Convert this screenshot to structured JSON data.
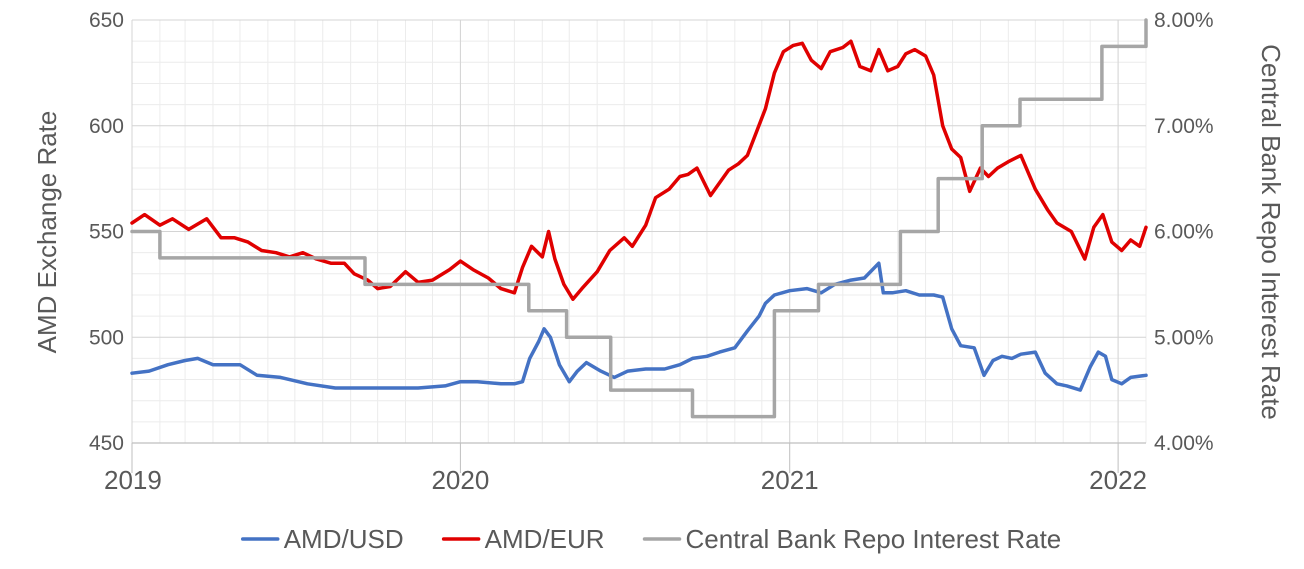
{
  "chart_data": {
    "type": "line",
    "title": "",
    "y_left_label": "AMD Exchange Rate",
    "y_right_label": "Central Bank Repo Interest Rate",
    "x_range": [
      "2019-01-01",
      "2022-02-01"
    ],
    "y_left_range": [
      450,
      650
    ],
    "y_left_ticks": [
      "450",
      "500",
      "550",
      "600",
      "650"
    ],
    "y_right_range": [
      4.0,
      8.0
    ],
    "y_right_ticks": [
      "4.00%",
      "5.00%",
      "6.00%",
      "7.00%",
      "8.00%"
    ],
    "x_ticks": [
      {
        "date": "2019-01-01",
        "label": "2019"
      },
      {
        "date": "2020-01-01",
        "label": "2020"
      },
      {
        "date": "2021-01-01",
        "label": "2021"
      },
      {
        "date": "2022-01-01",
        "label": "2022"
      }
    ],
    "grid": true,
    "legend_position": "bottom",
    "series": [
      {
        "name": "AMD/USD",
        "axis": "left",
        "color": "#4472C4",
        "style": "line",
        "points": [
          [
            "2019-01-01",
            483
          ],
          [
            "2019-01-20",
            484
          ],
          [
            "2019-02-10",
            487
          ],
          [
            "2019-03-01",
            489
          ],
          [
            "2019-03-15",
            490
          ],
          [
            "2019-04-01",
            487
          ],
          [
            "2019-05-01",
            487
          ],
          [
            "2019-05-20",
            482
          ],
          [
            "2019-06-15",
            481
          ],
          [
            "2019-07-15",
            478
          ],
          [
            "2019-08-15",
            476
          ],
          [
            "2019-09-15",
            476
          ],
          [
            "2019-10-15",
            476
          ],
          [
            "2019-11-15",
            476
          ],
          [
            "2019-12-15",
            477
          ],
          [
            "2020-01-01",
            479
          ],
          [
            "2020-01-20",
            479
          ],
          [
            "2020-02-15",
            478
          ],
          [
            "2020-03-01",
            478
          ],
          [
            "2020-03-10",
            479
          ],
          [
            "2020-03-18",
            490
          ],
          [
            "2020-03-28",
            498
          ],
          [
            "2020-04-03",
            504
          ],
          [
            "2020-04-10",
            500
          ],
          [
            "2020-04-20",
            487
          ],
          [
            "2020-05-01",
            479
          ],
          [
            "2020-05-10",
            484
          ],
          [
            "2020-05-20",
            488
          ],
          [
            "2020-06-05",
            484
          ],
          [
            "2020-06-20",
            481
          ],
          [
            "2020-07-05",
            484
          ],
          [
            "2020-07-25",
            485
          ],
          [
            "2020-08-15",
            485
          ],
          [
            "2020-09-01",
            487
          ],
          [
            "2020-09-15",
            490
          ],
          [
            "2020-10-01",
            491
          ],
          [
            "2020-10-15",
            493
          ],
          [
            "2020-11-01",
            495
          ],
          [
            "2020-11-15",
            503
          ],
          [
            "2020-11-28",
            510
          ],
          [
            "2020-12-05",
            516
          ],
          [
            "2020-12-15",
            520
          ],
          [
            "2021-01-01",
            522
          ],
          [
            "2021-01-20",
            523
          ],
          [
            "2021-02-05",
            521
          ],
          [
            "2021-02-20",
            525
          ],
          [
            "2021-03-10",
            527
          ],
          [
            "2021-03-25",
            528
          ],
          [
            "2021-04-10",
            535
          ],
          [
            "2021-04-15",
            521
          ],
          [
            "2021-04-25",
            521
          ],
          [
            "2021-05-10",
            522
          ],
          [
            "2021-05-25",
            520
          ],
          [
            "2021-06-10",
            520
          ],
          [
            "2021-06-20",
            519
          ],
          [
            "2021-06-30",
            504
          ],
          [
            "2021-07-10",
            496
          ],
          [
            "2021-07-25",
            495
          ],
          [
            "2021-08-05",
            482
          ],
          [
            "2021-08-15",
            489
          ],
          [
            "2021-08-25",
            491
          ],
          [
            "2021-09-05",
            490
          ],
          [
            "2021-09-15",
            492
          ],
          [
            "2021-10-01",
            493
          ],
          [
            "2021-10-12",
            483
          ],
          [
            "2021-10-25",
            478
          ],
          [
            "2021-11-05",
            477
          ],
          [
            "2021-11-20",
            475
          ],
          [
            "2021-12-01",
            486
          ],
          [
            "2021-12-10",
            493
          ],
          [
            "2021-12-18",
            491
          ],
          [
            "2021-12-25",
            480
          ],
          [
            "2022-01-05",
            478
          ],
          [
            "2022-01-15",
            481
          ],
          [
            "2022-02-01",
            482
          ]
        ]
      },
      {
        "name": "AMD/EUR",
        "axis": "left",
        "color": "#E00000",
        "style": "line",
        "points": [
          [
            "2019-01-01",
            554
          ],
          [
            "2019-01-15",
            558
          ],
          [
            "2019-02-01",
            553
          ],
          [
            "2019-02-15",
            556
          ],
          [
            "2019-03-05",
            551
          ],
          [
            "2019-03-25",
            556
          ],
          [
            "2019-04-10",
            547
          ],
          [
            "2019-04-25",
            547
          ],
          [
            "2019-05-10",
            545
          ],
          [
            "2019-05-25",
            541
          ],
          [
            "2019-06-10",
            540
          ],
          [
            "2019-06-25",
            538
          ],
          [
            "2019-07-10",
            540
          ],
          [
            "2019-07-25",
            537
          ],
          [
            "2019-08-10",
            535
          ],
          [
            "2019-08-25",
            535
          ],
          [
            "2019-09-05",
            530
          ],
          [
            "2019-09-20",
            527
          ],
          [
            "2019-10-01",
            523
          ],
          [
            "2019-10-15",
            524
          ],
          [
            "2019-11-01",
            531
          ],
          [
            "2019-11-15",
            526
          ],
          [
            "2019-12-01",
            527
          ],
          [
            "2019-12-20",
            532
          ],
          [
            "2020-01-01",
            536
          ],
          [
            "2020-01-15",
            532
          ],
          [
            "2020-02-01",
            528
          ],
          [
            "2020-02-15",
            523
          ],
          [
            "2020-03-01",
            521
          ],
          [
            "2020-03-10",
            533
          ],
          [
            "2020-03-20",
            543
          ],
          [
            "2020-04-01",
            538
          ],
          [
            "2020-04-08",
            550
          ],
          [
            "2020-04-15",
            537
          ],
          [
            "2020-04-25",
            525
          ],
          [
            "2020-05-05",
            518
          ],
          [
            "2020-05-15",
            523
          ],
          [
            "2020-06-01",
            531
          ],
          [
            "2020-06-15",
            541
          ],
          [
            "2020-07-01",
            547
          ],
          [
            "2020-07-10",
            543
          ],
          [
            "2020-07-25",
            553
          ],
          [
            "2020-08-05",
            566
          ],
          [
            "2020-08-20",
            570
          ],
          [
            "2020-09-01",
            576
          ],
          [
            "2020-09-10",
            577
          ],
          [
            "2020-09-20",
            580
          ],
          [
            "2020-10-05",
            567
          ],
          [
            "2020-10-15",
            573
          ],
          [
            "2020-10-25",
            579
          ],
          [
            "2020-11-05",
            582
          ],
          [
            "2020-11-15",
            586
          ],
          [
            "2020-11-25",
            597
          ],
          [
            "2020-12-05",
            608
          ],
          [
            "2020-12-15",
            625
          ],
          [
            "2020-12-25",
            635
          ],
          [
            "2021-01-05",
            638
          ],
          [
            "2021-01-15",
            639
          ],
          [
            "2021-01-25",
            631
          ],
          [
            "2021-02-05",
            627
          ],
          [
            "2021-02-15",
            635
          ],
          [
            "2021-03-01",
            637
          ],
          [
            "2021-03-10",
            640
          ],
          [
            "2021-03-20",
            628
          ],
          [
            "2021-04-01",
            626
          ],
          [
            "2021-04-10",
            636
          ],
          [
            "2021-04-20",
            626
          ],
          [
            "2021-05-01",
            628
          ],
          [
            "2021-05-10",
            634
          ],
          [
            "2021-05-20",
            636
          ],
          [
            "2021-06-01",
            633
          ],
          [
            "2021-06-10",
            624
          ],
          [
            "2021-06-20",
            600
          ],
          [
            "2021-06-30",
            589
          ],
          [
            "2021-07-10",
            585
          ],
          [
            "2021-07-20",
            569
          ],
          [
            "2021-08-01",
            580
          ],
          [
            "2021-08-10",
            576
          ],
          [
            "2021-08-20",
            580
          ],
          [
            "2021-09-01",
            583
          ],
          [
            "2021-09-15",
            586
          ],
          [
            "2021-10-01",
            570
          ],
          [
            "2021-10-15",
            560
          ],
          [
            "2021-10-25",
            554
          ],
          [
            "2021-11-10",
            550
          ],
          [
            "2021-11-25",
            537
          ],
          [
            "2021-12-05",
            552
          ],
          [
            "2021-12-15",
            558
          ],
          [
            "2021-12-25",
            545
          ],
          [
            "2022-01-05",
            541
          ],
          [
            "2022-01-15",
            546
          ],
          [
            "2022-01-25",
            543
          ],
          [
            "2022-02-01",
            552
          ]
        ]
      },
      {
        "name": "Central Bank Repo Interest Rate",
        "axis": "right",
        "color": "#A6A6A6",
        "style": "step",
        "points": [
          [
            "2019-01-01",
            6.0
          ],
          [
            "2019-02-01",
            5.75
          ],
          [
            "2019-09-17",
            5.5
          ],
          [
            "2020-02-04",
            5.5
          ],
          [
            "2020-03-17",
            5.25
          ],
          [
            "2020-04-28",
            5.0
          ],
          [
            "2020-06-16",
            4.5
          ],
          [
            "2020-09-15",
            4.25
          ],
          [
            "2020-12-15",
            5.25
          ],
          [
            "2021-02-02",
            5.5
          ],
          [
            "2021-05-04",
            6.0
          ],
          [
            "2021-06-15",
            6.5
          ],
          [
            "2021-08-03",
            7.0
          ],
          [
            "2021-09-14",
            7.25
          ],
          [
            "2021-12-14",
            7.75
          ],
          [
            "2022-02-01",
            8.0
          ]
        ]
      }
    ]
  }
}
